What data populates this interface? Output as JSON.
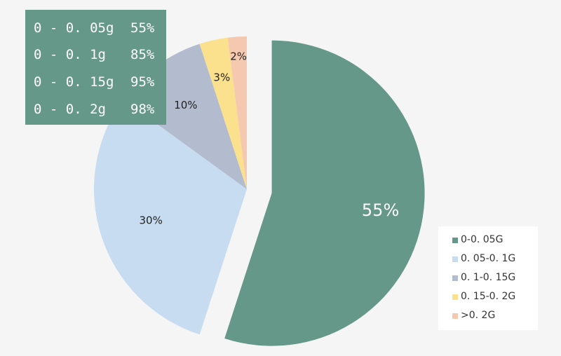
{
  "chart_data": {
    "type": "pie",
    "categories": [
      "0-0.05G",
      "0.05-0.1G",
      "0.1-0.15G",
      "0.15-0.2G",
      ">0.2G"
    ],
    "values": [
      55,
      30,
      10,
      3,
      2
    ],
    "data_labels": [
      "55%",
      "30%",
      "10%",
      "3%",
      "2%"
    ],
    "colors": [
      "#659888",
      "#c7dcf0",
      "#b3bccf",
      "#fbe08d",
      "#f5c8b0"
    ],
    "exploded_slice": "0-0.05G",
    "legend_placement": "bottom-right",
    "summary_table": [
      {
        "range": "0 - 0.05g",
        "percent": "55%"
      },
      {
        "range": "0 - 0.1g",
        "percent": "85%"
      },
      {
        "range": "0 - 0.15g",
        "percent": "95%"
      },
      {
        "range": "0 - 0.2g",
        "percent": "98%"
      }
    ]
  },
  "legend": {
    "items": [
      {
        "label": "0-0. 05G",
        "color": "#659888"
      },
      {
        "label": "0. 05-0. 1G",
        "color": "#c7dcf0"
      },
      {
        "label": "0. 1-0. 15G",
        "color": "#b3bccf"
      },
      {
        "label": "0. 15-0. 2G",
        "color": "#fbe08d"
      },
      {
        "label": ">0. 2G",
        "color": "#f5c8b0"
      }
    ]
  },
  "summary": {
    "rows": [
      {
        "range": "0 - 0. 05g",
        "percent": "55%"
      },
      {
        "range": "0 - 0. 1g",
        "percent": "85%"
      },
      {
        "range": "0 - 0. 15g",
        "percent": "95%"
      },
      {
        "range": "0 - 0. 2g",
        "percent": "98%"
      }
    ]
  }
}
